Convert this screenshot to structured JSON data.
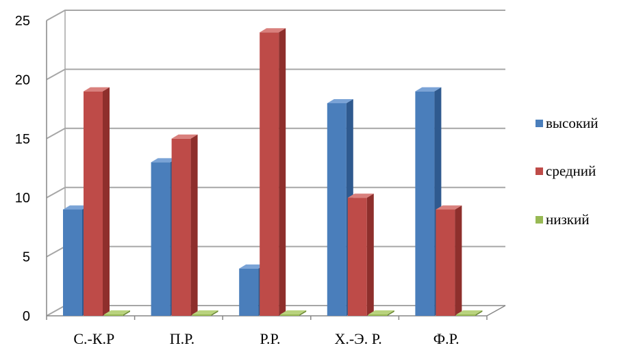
{
  "chart_data": {
    "type": "bar",
    "categories": [
      "С.-К.Р",
      "П.Р.",
      "Р.Р.",
      "Х.-Э. Р.",
      "Ф.Р."
    ],
    "series": [
      {
        "name": "высокий",
        "values": [
          9,
          13,
          4,
          18,
          19
        ]
      },
      {
        "name": "средний",
        "values": [
          19,
          15,
          24,
          10,
          9
        ]
      },
      {
        "name": "низкий",
        "values": [
          0,
          0,
          0,
          0,
          0
        ]
      }
    ],
    "ylim": [
      0,
      25
    ],
    "yticks": [
      0,
      5,
      10,
      15,
      20,
      25
    ],
    "grid": true,
    "legend_position": "right",
    "style": "3d-clustered-column"
  },
  "colors": {
    "series": [
      "#4a7ebb",
      "#be4b48",
      "#98b954"
    ],
    "series_side": [
      "#2f5a8f",
      "#8e2f2c",
      "#6d8a35"
    ],
    "series_top": [
      "#7aa3d6",
      "#d9807d",
      "#b9d37e"
    ],
    "grid": "#a6a6a6",
    "axis": "#868686"
  }
}
